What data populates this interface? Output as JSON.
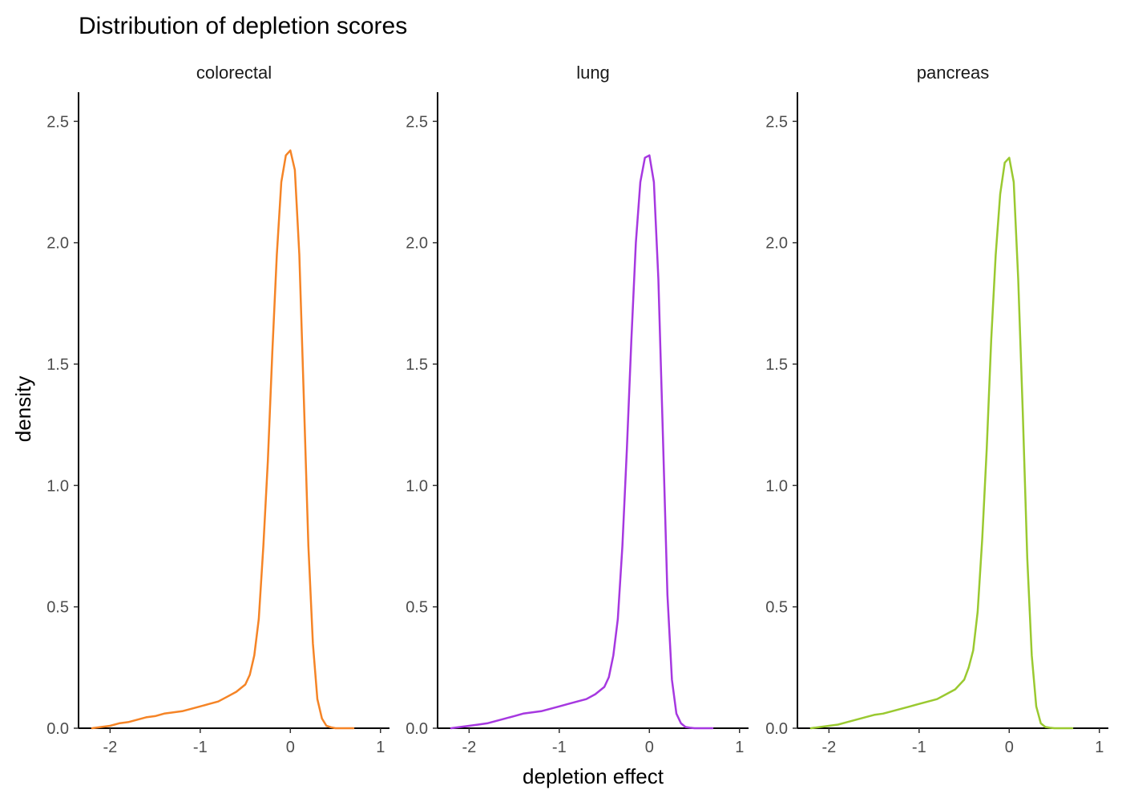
{
  "chart_data": {
    "type": "line",
    "title": "Distribution of depletion scores",
    "xlabel": "depletion effect",
    "ylabel": "density",
    "grid": false,
    "legend": "none",
    "xticks": [
      -2,
      -1,
      0,
      1
    ],
    "xtick_labels": [
      "-2",
      "-1",
      "0",
      "1"
    ],
    "yticks": [
      0,
      0.5,
      1,
      1.5,
      2,
      2.5
    ],
    "ytick_labels": [
      "0.0",
      "0.5",
      "1.0",
      "1.5",
      "2.0",
      "2.5"
    ],
    "panels": [
      {
        "name": "colorectal",
        "color": "#F58426",
        "xlim": [
          -2.35,
          1.1
        ],
        "ylim": [
          0,
          2.62
        ],
        "x": [
          -2.2,
          -2.0,
          -1.9,
          -1.8,
          -1.7,
          -1.6,
          -1.5,
          -1.4,
          -1.3,
          -1.2,
          -1.1,
          -1.0,
          -0.9,
          -0.8,
          -0.7,
          -0.6,
          -0.5,
          -0.45,
          -0.4,
          -0.35,
          -0.3,
          -0.25,
          -0.2,
          -0.15,
          -0.1,
          -0.05,
          0.0,
          0.05,
          0.1,
          0.15,
          0.2,
          0.25,
          0.3,
          0.35,
          0.4,
          0.45,
          0.5,
          0.6,
          0.7
        ],
        "y": [
          0.0,
          0.01,
          0.02,
          0.025,
          0.035,
          0.045,
          0.05,
          0.06,
          0.065,
          0.07,
          0.08,
          0.09,
          0.1,
          0.11,
          0.13,
          0.15,
          0.18,
          0.22,
          0.3,
          0.45,
          0.75,
          1.1,
          1.55,
          1.95,
          2.25,
          2.36,
          2.38,
          2.3,
          1.95,
          1.35,
          0.75,
          0.35,
          0.12,
          0.04,
          0.01,
          0.004,
          0.0,
          0.0,
          0.0
        ]
      },
      {
        "name": "lung",
        "color": "#A638E0",
        "xlim": [
          -2.35,
          1.1
        ],
        "ylim": [
          0,
          2.62
        ],
        "x": [
          -2.2,
          -2.0,
          -1.9,
          -1.8,
          -1.7,
          -1.6,
          -1.5,
          -1.4,
          -1.3,
          -1.2,
          -1.1,
          -1.0,
          -0.9,
          -0.8,
          -0.7,
          -0.6,
          -0.5,
          -0.45,
          -0.4,
          -0.35,
          -0.3,
          -0.25,
          -0.2,
          -0.15,
          -0.1,
          -0.05,
          0.0,
          0.05,
          0.1,
          0.15,
          0.2,
          0.25,
          0.3,
          0.35,
          0.4,
          0.45,
          0.5,
          0.6,
          0.7
        ],
        "y": [
          0.0,
          0.01,
          0.015,
          0.02,
          0.03,
          0.04,
          0.05,
          0.06,
          0.065,
          0.07,
          0.08,
          0.09,
          0.1,
          0.11,
          0.12,
          0.14,
          0.17,
          0.21,
          0.3,
          0.45,
          0.75,
          1.15,
          1.6,
          2.0,
          2.25,
          2.35,
          2.36,
          2.25,
          1.85,
          1.2,
          0.55,
          0.2,
          0.06,
          0.02,
          0.005,
          0.002,
          0.0,
          0.0,
          0.0
        ]
      },
      {
        "name": "pancreas",
        "color": "#9AC930",
        "xlim": [
          -2.35,
          1.1
        ],
        "ylim": [
          0,
          2.62
        ],
        "x": [
          -2.2,
          -2.0,
          -1.9,
          -1.8,
          -1.7,
          -1.6,
          -1.5,
          -1.4,
          -1.3,
          -1.2,
          -1.1,
          -1.0,
          -0.9,
          -0.8,
          -0.7,
          -0.6,
          -0.5,
          -0.45,
          -0.4,
          -0.35,
          -0.3,
          -0.25,
          -0.2,
          -0.15,
          -0.1,
          -0.05,
          0.0,
          0.05,
          0.1,
          0.15,
          0.2,
          0.25,
          0.3,
          0.35,
          0.4,
          0.45,
          0.5,
          0.6,
          0.7
        ],
        "y": [
          0.0,
          0.01,
          0.015,
          0.025,
          0.035,
          0.045,
          0.055,
          0.06,
          0.07,
          0.08,
          0.09,
          0.1,
          0.11,
          0.12,
          0.14,
          0.16,
          0.2,
          0.25,
          0.32,
          0.48,
          0.78,
          1.15,
          1.6,
          1.95,
          2.2,
          2.33,
          2.35,
          2.25,
          1.85,
          1.3,
          0.7,
          0.3,
          0.09,
          0.02,
          0.005,
          0.002,
          0.0,
          0.0,
          0.0
        ]
      }
    ]
  }
}
